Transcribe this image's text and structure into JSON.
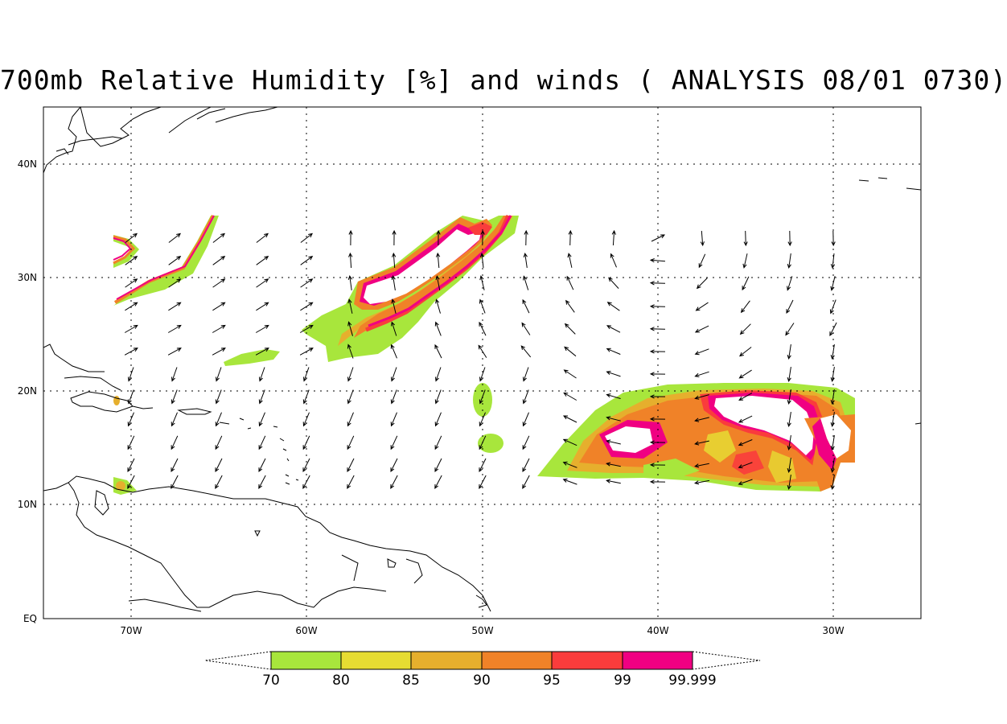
{
  "title": "700mb Relative Humidity [%] and winds ( ANALYSIS 08/01 0730)",
  "axes": {
    "x_ticks": [
      "70W",
      "60W",
      "50W",
      "40W",
      "30W"
    ],
    "y_ticks": [
      "EQ",
      "10N",
      "20N",
      "30N",
      "40N"
    ]
  },
  "colorbar": {
    "labels": [
      "70",
      "80",
      "85",
      "90",
      "95",
      "99",
      "99.999"
    ],
    "colors": [
      "#a8e63c",
      "#e6dc32",
      "#e6af2d",
      "#f08228",
      "#fa3c3c",
      "#f00082"
    ]
  },
  "colors": {
    "rh_70": "#a8e63c",
    "rh_80": "#e6dc32",
    "rh_85": "#e6af2d",
    "rh_90": "#f08228",
    "rh_95": "#fa3c3c",
    "rh_99": "#f00082"
  }
}
